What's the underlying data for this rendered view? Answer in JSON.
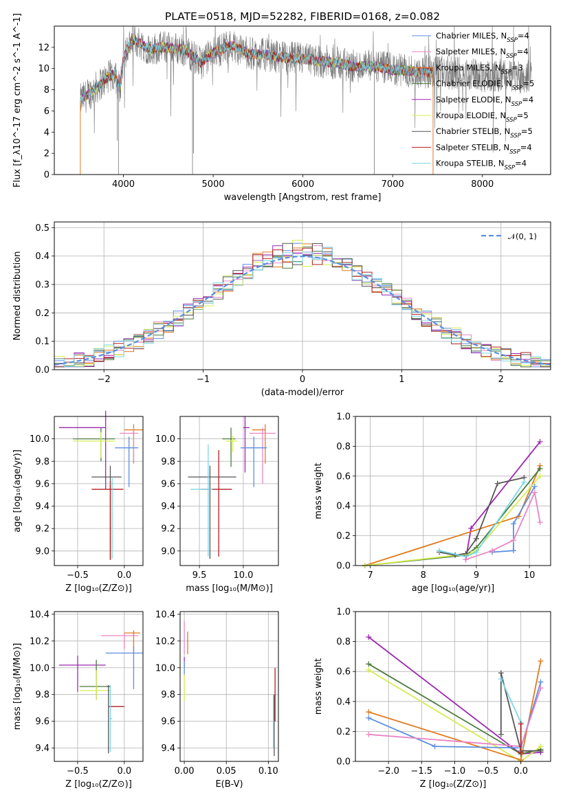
{
  "figure": {
    "title": "PLATE=0518, MJD=52282, FIBERID=0168, z=0.082"
  },
  "colors": {
    "Chabrier MILES": "#5b8ee0",
    "Salpeter MILES": "#e884c4",
    "Kroupa MILES": "#e07a1e",
    "Chabrier ELODIE": "#4a7a3a",
    "Salpeter ELODIE": "#9b27b0",
    "Kroupa ELODIE": "#d4ec50",
    "Chabrier STELIB": "#555555",
    "Salpeter STELIB": "#b01e1e",
    "Kroupa STELIB": "#7ad7e6"
  },
  "chart_data": [
    {
      "id": "spectrum",
      "type": "line",
      "xlabel": "wavelength [Angstrom, rest frame]",
      "ylabel": "Flux [f_λ10^-17 erg cm^-2 s^-1 A^-1]",
      "xlim": [
        3230,
        8760
      ],
      "ylim": [
        0,
        14
      ],
      "xticks": [
        4000,
        5000,
        6000,
        7000,
        8000
      ],
      "yticks": [
        0,
        2,
        4,
        6,
        8,
        10,
        12
      ],
      "grid": false,
      "legend_position": "right",
      "legend": [
        {
          "label": "Chabrier MILES, N",
          "sub": "SSP",
          "eq": "=4",
          "key": "Chabrier MILES"
        },
        {
          "label": "Salpeter MILES, N",
          "sub": "SSP",
          "eq": "=4",
          "key": "Salpeter MILES"
        },
        {
          "label": "Kroupa MILES, N",
          "sub": "SSP",
          "eq": "=3",
          "key": "Kroupa MILES"
        },
        {
          "label": "Chabrier ELODIE, N",
          "sub": "SSP",
          "eq": "=5",
          "key": "Chabrier ELODIE"
        },
        {
          "label": "Salpeter ELODIE, N",
          "sub": "SSP",
          "eq": "=4",
          "key": "Salpeter ELODIE"
        },
        {
          "label": "Kroupa ELODIE, N",
          "sub": "SSP",
          "eq": "=5",
          "key": "Kroupa ELODIE"
        },
        {
          "label": "Chabrier STELIB, N",
          "sub": "SSP",
          "eq": "=5",
          "key": "Chabrier STELIB"
        },
        {
          "label": "Salpeter STELIB, N",
          "sub": "SSP",
          "eq": "=4",
          "key": "Salpeter STELIB"
        },
        {
          "label": "Kroupa STELIB, N",
          "sub": "SSP",
          "eq": "=4",
          "key": "Kroupa STELIB"
        }
      ],
      "data_spectrum": {
        "x_start": 3520,
        "x_end": 8550,
        "points": [
          [
            3520,
            7.0
          ],
          [
            3600,
            7.5
          ],
          [
            3700,
            8.2
          ],
          [
            3800,
            9.0
          ],
          [
            3900,
            9.5
          ],
          [
            3960,
            8.0
          ],
          [
            4000,
            11.0
          ],
          [
            4100,
            12.8
          ],
          [
            4200,
            12.3
          ],
          [
            4300,
            11.8
          ],
          [
            4400,
            12.0
          ],
          [
            4500,
            12.0
          ],
          [
            4700,
            11.7
          ],
          [
            4860,
            10.5
          ],
          [
            5000,
            11.5
          ],
          [
            5200,
            12.2
          ],
          [
            5400,
            11.4
          ],
          [
            5600,
            11.3
          ],
          [
            5800,
            11.0
          ],
          [
            6000,
            10.9
          ],
          [
            6200,
            10.7
          ],
          [
            6400,
            10.5
          ],
          [
            6560,
            10.2
          ],
          [
            6800,
            10.2
          ],
          [
            7000,
            9.9
          ],
          [
            7300,
            9.7
          ],
          [
            7600,
            9.6
          ],
          [
            7900,
            9.4
          ],
          [
            8200,
            9.3
          ],
          [
            8550,
            9.2
          ]
        ]
      },
      "models_visible_range": [
        3520,
        7450
      ]
    },
    {
      "id": "residuals",
      "type": "histogram",
      "xlabel": "(data-model)/error",
      "ylabel": "Normed distribution",
      "xlim": [
        -2.5,
        2.5
      ],
      "ylim": [
        0,
        0.52
      ],
      "xticks": [
        -2,
        -1,
        0,
        1,
        2
      ],
      "xtick_labels": [
        "−2",
        "−1",
        "0",
        "1",
        "2"
      ],
      "yticks": [
        0.0,
        0.1,
        0.2,
        0.3,
        0.4,
        0.5
      ],
      "grid": true,
      "legend_position": "top-right",
      "legend": [
        {
          "label": "𝒩(0, 1)",
          "style": "dashed",
          "color": "#5b8ee0"
        }
      ],
      "bin_width": 0.1
    },
    {
      "id": "age_vs_Z",
      "type": "errorbar",
      "xlabel": "Z [log₁₀(Z/Z⊙)]",
      "ylabel": "age  [log₁₀(age/yr)]",
      "xlim": [
        -0.75,
        0.2
      ],
      "ylim": [
        8.87,
        10.2
      ],
      "xticks": [
        -0.5,
        0.0
      ],
      "xtick_labels": [
        "−0.5",
        "0.0"
      ],
      "yticks": [
        9.0,
        9.2,
        9.4,
        9.6,
        9.8,
        10.0
      ],
      "grid": true,
      "points": [
        {
          "key": "Salpeter ELODIE",
          "x": -0.2,
          "xerr": [
            0.5,
            0.0
          ],
          "y": 10.1,
          "yerr": [
            0.55,
            0.15
          ]
        },
        {
          "key": "Kroupa MILES",
          "x": 0.1,
          "xerr": [
            0.1,
            0.1
          ],
          "y": 10.08,
          "yerr": [
            0.3,
            0.05
          ]
        },
        {
          "key": "Salpeter MILES",
          "x": 0.1,
          "xerr": [
            0.15,
            0.05
          ],
          "y": 10.05,
          "yerr": [
            0.25,
            0.05
          ]
        },
        {
          "key": "Chabrier ELODIE",
          "x": -0.25,
          "xerr": [
            0.3,
            0.15
          ],
          "y": 10.0,
          "yerr": [
            0.2,
            0.1
          ]
        },
        {
          "key": "Kroupa ELODIE",
          "x": -0.25,
          "xerr": [
            0.3,
            0.15
          ],
          "y": 9.98,
          "yerr": [
            0.15,
            0.08
          ]
        },
        {
          "key": "Chabrier MILES",
          "x": 0.05,
          "xerr": [
            0.15,
            0.1
          ],
          "y": 9.92,
          "yerr": [
            0.35,
            0.1
          ]
        },
        {
          "key": "Chabrier STELIB",
          "x": -0.15,
          "xerr": [
            0.2,
            0.12
          ],
          "y": 9.66,
          "yerr": [
            0.73,
            0.1
          ]
        },
        {
          "key": "Salpeter STELIB",
          "x": -0.15,
          "xerr": [
            0.2,
            0.14
          ],
          "y": 9.55,
          "yerr": [
            0.63,
            0.07
          ]
        },
        {
          "key": "Kroupa STELIB",
          "x": -0.13,
          "xerr": [
            0.02,
            0.02
          ],
          "y": 9.6,
          "yerr": [
            0.67,
            0.05
          ]
        }
      ]
    },
    {
      "id": "age_vs_mass",
      "type": "errorbar",
      "xlabel": "mass [log₁₀(M/M⊙)]",
      "ylabel": "",
      "xlim": [
        9.28,
        10.4
      ],
      "ylim": [
        8.87,
        10.2
      ],
      "xticks": [
        9.5,
        10.0
      ],
      "xtick_labels": [
        "9.5",
        "10.0"
      ],
      "yticks": [
        9.0,
        9.2,
        9.4,
        9.6,
        9.8,
        10.0
      ],
      "grid": true,
      "points": [
        {
          "key": "Salpeter ELODIE",
          "x": 10.02,
          "xerr": [
            0.02,
            0.05
          ],
          "y": 10.1,
          "yerr": [
            0.4,
            0.1
          ]
        },
        {
          "key": "Kroupa MILES",
          "x": 10.25,
          "xerr": [
            0.15,
            0.0
          ],
          "y": 10.08,
          "yerr": [
            0.3,
            0.05
          ]
        },
        {
          "key": "Salpeter MILES",
          "x": 10.22,
          "xerr": [
            0.15,
            0.15
          ],
          "y": 10.05,
          "yerr": [
            0.45,
            0.05
          ]
        },
        {
          "key": "Chabrier ELODIE",
          "x": 9.86,
          "xerr": [
            0.1,
            0.05
          ],
          "y": 10.0,
          "yerr": [
            0.25,
            0.1
          ]
        },
        {
          "key": "Kroupa ELODIE",
          "x": 9.88,
          "xerr": [
            0.08,
            0.05
          ],
          "y": 9.98,
          "yerr": [
            0.1,
            0.05
          ]
        },
        {
          "key": "Chabrier MILES",
          "x": 10.12,
          "xerr": [
            0.15,
            0.15
          ],
          "y": 9.92,
          "yerr": [
            0.35,
            0.1
          ]
        },
        {
          "key": "Chabrier STELIB",
          "x": 9.62,
          "xerr": [
            0.25,
            0.3
          ],
          "y": 9.66,
          "yerr": [
            0.73,
            0.1
          ]
        },
        {
          "key": "Salpeter STELIB",
          "x": 9.72,
          "xerr": [
            0.2,
            0.15
          ],
          "y": 9.55,
          "yerr": [
            0.6,
            0.35
          ]
        },
        {
          "key": "Kroupa STELIB",
          "x": 9.6,
          "xerr": [
            0.2,
            0.05
          ],
          "y": 9.55,
          "yerr": [
            0.6,
            0.4
          ]
        }
      ]
    },
    {
      "id": "weight_vs_age",
      "type": "line",
      "xlabel": "age  [log₁₀(age/yr)]",
      "ylabel": "mass weight",
      "xlim": [
        6.72,
        10.4
      ],
      "ylim": [
        0,
        1.0
      ],
      "xticks": [
        7,
        8,
        9,
        10
      ],
      "yticks": [
        0.0,
        0.2,
        0.4,
        0.6,
        0.8,
        1.0
      ],
      "grid": true,
      "series": [
        {
          "key": "Salpeter ELODIE",
          "x": [
            8.8,
            8.9,
            10.2
          ],
          "y": [
            0.04,
            0.25,
            0.83
          ]
        },
        {
          "key": "Kroupa MILES",
          "x": [
            6.9,
            9.8,
            10.2
          ],
          "y": [
            0.0,
            0.33,
            0.67
          ]
        },
        {
          "key": "Chabrier ELODIE",
          "x": [
            6.9,
            8.8,
            9.0,
            10.2
          ],
          "y": [
            0.0,
            0.07,
            0.12,
            0.65
          ]
        },
        {
          "key": "Kroupa ELODIE",
          "x": [
            6.9,
            8.9,
            9.0,
            10.2
          ],
          "y": [
            0.0,
            0.08,
            0.1,
            0.6
          ]
        },
        {
          "key": "Chabrier STELIB",
          "x": [
            8.3,
            8.6,
            8.8,
            9.0,
            9.4,
            9.9
          ],
          "y": [
            0.09,
            0.07,
            0.08,
            0.18,
            0.55,
            0.59
          ]
        },
        {
          "key": "Kroupa STELIB",
          "x": [
            8.3,
            8.8,
            9.0,
            9.9
          ],
          "y": [
            0.1,
            0.06,
            0.09,
            0.56
          ]
        },
        {
          "key": "Chabrier MILES",
          "x": [
            9.3,
            9.7,
            9.7,
            10.1
          ],
          "y": [
            0.09,
            0.1,
            0.28,
            0.53
          ]
        },
        {
          "key": "Salpeter MILES",
          "x": [
            8.8,
            9.3,
            9.7,
            10.1,
            10.2
          ],
          "y": [
            0.04,
            0.1,
            0.17,
            0.49,
            0.29
          ]
        }
      ]
    },
    {
      "id": "mass_vs_Z",
      "type": "errorbar",
      "xlabel": "Z [log₁₀(Z/Z⊙)]",
      "ylabel": "mass [log₁₀(M/M⊙)]",
      "xlim": [
        -0.75,
        0.2
      ],
      "ylim": [
        9.3,
        10.42
      ],
      "xticks": [
        -0.5,
        0.0
      ],
      "xtick_labels": [
        "−0.5",
        "0.0"
      ],
      "yticks": [
        9.4,
        9.6,
        9.8,
        10.0,
        10.2,
        10.4
      ],
      "grid": true,
      "points": [
        {
          "key": "Kroupa MILES",
          "x": 0.1,
          "xerr": [
            0.1,
            0.07
          ],
          "y": 10.26,
          "yerr": [
            0.15,
            0.02
          ]
        },
        {
          "key": "Salpeter MILES",
          "x": 0.0,
          "xerr": [
            0.25,
            0.15
          ],
          "y": 10.24,
          "yerr": [
            0.1,
            0.02
          ]
        },
        {
          "key": "Chabrier MILES",
          "x": 0.1,
          "xerr": [
            0.3,
            0.1
          ],
          "y": 10.11,
          "yerr": [
            0.27,
            0.05
          ]
        },
        {
          "key": "Salpeter ELODIE",
          "x": -0.5,
          "xerr": [
            0.2,
            0.3
          ],
          "y": 10.02,
          "yerr": [
            0.2,
            0.07
          ]
        },
        {
          "key": "Chabrier ELODIE",
          "x": -0.3,
          "xerr": [
            0.18,
            0.15
          ],
          "y": 9.86,
          "yerr": [
            0.1,
            0.2
          ]
        },
        {
          "key": "Kroupa ELODIE",
          "x": -0.3,
          "xerr": [
            0.18,
            0.15
          ],
          "y": 9.83,
          "yerr": [
            0.07,
            0.15
          ]
        },
        {
          "key": "Chabrier STELIB",
          "x": -0.17,
          "xerr": [
            0.02,
            0.02
          ],
          "y": 9.86,
          "yerr": [
            0.5,
            0.01
          ]
        },
        {
          "key": "Salpeter STELIB",
          "x": -0.17,
          "xerr": [
            0.0,
            0.17
          ],
          "y": 9.71,
          "yerr": [
            0.0,
            0.0
          ]
        },
        {
          "key": "Kroupa STELIB",
          "x": -0.15,
          "xerr": [
            0.02,
            0.02
          ],
          "y": 9.62,
          "yerr": [
            0.25,
            0.25
          ]
        }
      ]
    },
    {
      "id": "mass_vs_EBV",
      "type": "errorbar",
      "xlabel": "E(B-V)",
      "ylabel": "",
      "xlim": [
        -0.005,
        0.112
      ],
      "ylim": [
        9.3,
        10.42
      ],
      "xticks": [
        0.0,
        0.05,
        0.1
      ],
      "xtick_labels": [
        "0.00",
        "0.05",
        "0.10"
      ],
      "yticks": [
        9.4,
        9.6,
        9.8,
        10.0,
        10.2,
        10.4
      ],
      "grid": true,
      "points": [
        {
          "key": "Salpeter MILES",
          "x": 0.0,
          "y": 10.3,
          "yerr": [
            0.2,
            0.05
          ]
        },
        {
          "key": "Kroupa MILES",
          "x": 0.004,
          "y": 10.2,
          "yerr": [
            0.1,
            0.07
          ]
        },
        {
          "key": "Salpeter ELODIE",
          "x": 0.0,
          "y": 10.05,
          "yerr": [
            0.05,
            0.03
          ]
        },
        {
          "key": "Kroupa ELODIE",
          "x": 0.0,
          "y": 9.9,
          "yerr": [
            0.15,
            0.1
          ]
        },
        {
          "key": "Chabrier MILES",
          "x": 0.0,
          "y": 10.0,
          "yerr": [
            0.05,
            0.05
          ]
        },
        {
          "key": "Salpeter STELIB",
          "x": 0.108,
          "y": 9.9,
          "yerr": [
            0.3,
            0.1
          ]
        },
        {
          "key": "Chabrier STELIB",
          "x": 0.107,
          "y": 9.7,
          "yerr": [
            0.36,
            0.1
          ]
        },
        {
          "key": "Kroupa STELIB",
          "x": 0.106,
          "y": 9.6,
          "yerr": [
            0.2,
            0.2
          ]
        }
      ]
    },
    {
      "id": "weight_vs_Z",
      "type": "line",
      "xlabel": "Z [log₁₀(Z/Z⊙)]",
      "ylabel": "mass weight",
      "xlim": [
        -2.5,
        0.45
      ],
      "ylim": [
        0,
        1.0
      ],
      "xticks": [
        -2.0,
        -1.5,
        -1.0,
        -0.5,
        0.0
      ],
      "xtick_labels": [
        "−2.0",
        "−1.5",
        "−1.0",
        "−0.5",
        "0.0"
      ],
      "yticks": [
        0.0,
        0.2,
        0.4,
        0.6,
        0.8,
        1.0
      ],
      "grid": true,
      "series": [
        {
          "key": "Salpeter ELODIE",
          "x": [
            -2.3,
            0.0,
            0.3
          ],
          "y": [
            0.83,
            0.05,
            0.06
          ]
        },
        {
          "key": "Chabrier ELODIE",
          "x": [
            -2.3,
            0.0,
            0.3
          ],
          "y": [
            0.65,
            0.05,
            0.08
          ]
        },
        {
          "key": "Kroupa ELODIE",
          "x": [
            -2.3,
            0.0,
            0.3
          ],
          "y": [
            0.61,
            0.0,
            0.1
          ]
        },
        {
          "key": "Kroupa MILES",
          "x": [
            -2.3,
            0.0,
            0.3
          ],
          "y": [
            0.33,
            0.01,
            0.67
          ]
        },
        {
          "key": "Chabrier MILES",
          "x": [
            -2.3,
            -1.3,
            0.0,
            0.3
          ],
          "y": [
            0.29,
            0.1,
            0.09,
            0.53
          ]
        },
        {
          "key": "Salpeter MILES",
          "x": [
            -2.3,
            0.0,
            0.3
          ],
          "y": [
            0.18,
            0.1,
            0.49
          ]
        },
        {
          "key": "Chabrier STELIB",
          "x": [
            -0.3,
            -0.3,
            0.0,
            0.3
          ],
          "y": [
            0.18,
            0.59,
            0.07,
            0.07
          ]
        },
        {
          "key": "Kroupa STELIB",
          "x": [
            -0.3,
            0.0,
            0.0
          ],
          "y": [
            0.55,
            0.26,
            0.09
          ]
        },
        {
          "key": "Salpeter STELIB",
          "x": [
            0.0,
            0.0
          ],
          "y": [
            0.25,
            0.06
          ]
        }
      ]
    }
  ]
}
